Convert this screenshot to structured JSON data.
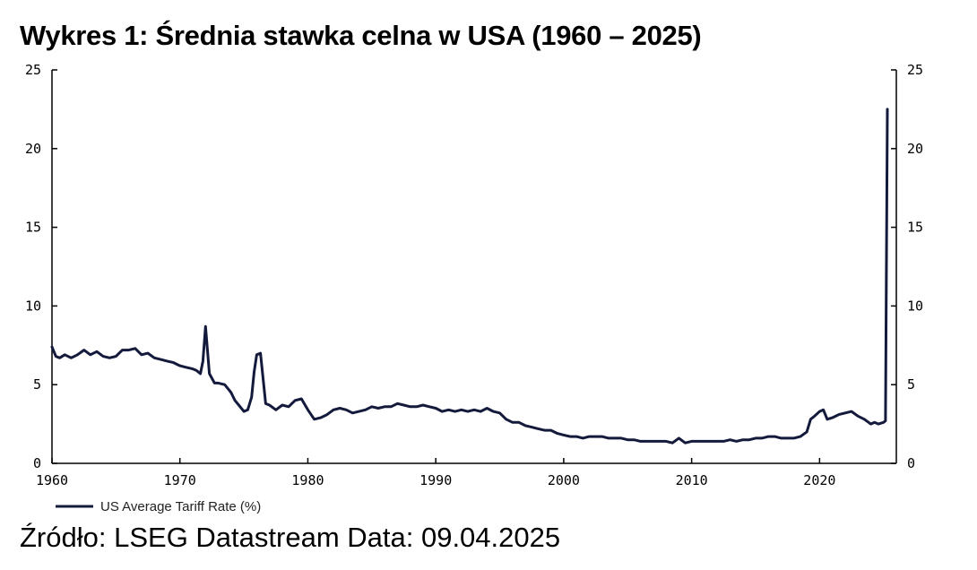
{
  "title": "Wykres 1: Średnia stawka celna w USA (1960 – 2025)",
  "source": "Źródło: LSEG Datastream Data: 09.04.2025",
  "colors": {
    "series": "#141a3c",
    "axis": "#000000"
  },
  "chart_data": {
    "type": "line",
    "title": "Wykres 1: Średnia stawka celna w USA (1960 – 2025)",
    "xlabel": "",
    "ylabel": "",
    "xlim": [
      1960,
      2026
    ],
    "ylim": [
      0,
      25
    ],
    "x_ticks": [
      1960,
      1970,
      1980,
      1990,
      2000,
      2010,
      2020
    ],
    "y_ticks": [
      0,
      5,
      10,
      15,
      20,
      25
    ],
    "y_axis_right": true,
    "grid": false,
    "legend": {
      "placement": "bottom-left"
    },
    "series": [
      {
        "name": "US Average Tariff Rate (%)",
        "color": "#141a3c",
        "x": [
          1960,
          1960.3,
          1960.6,
          1961,
          1961.5,
          1962,
          1962.5,
          1963,
          1963.5,
          1964,
          1964.5,
          1965,
          1965.5,
          1966,
          1966.5,
          1967,
          1967.5,
          1968,
          1968.5,
          1969,
          1969.5,
          1970,
          1970.5,
          1971,
          1971.3,
          1971.6,
          1971.8,
          1972,
          1972.3,
          1972.7,
          1973,
          1973.5,
          1974,
          1974.3,
          1974.6,
          1975,
          1975.3,
          1975.6,
          1975.8,
          1976,
          1976.3,
          1976.7,
          1977,
          1977.5,
          1978,
          1978.5,
          1979,
          1979.5,
          1980,
          1980.5,
          1981,
          1981.5,
          1982,
          1982.5,
          1983,
          1983.5,
          1984,
          1984.5,
          1985,
          1985.5,
          1986,
          1986.5,
          1987,
          1987.5,
          1988,
          1988.5,
          1989,
          1989.5,
          1990,
          1990.5,
          1991,
          1991.5,
          1992,
          1992.5,
          1993,
          1993.5,
          1994,
          1994.5,
          1995,
          1995.5,
          1996,
          1996.5,
          1997,
          1997.5,
          1998,
          1998.5,
          1999,
          1999.5,
          2000,
          2000.5,
          2001,
          2001.5,
          2002,
          2002.5,
          2003,
          2003.5,
          2004,
          2004.5,
          2005,
          2005.5,
          2006,
          2006.5,
          2007,
          2007.5,
          2008,
          2008.5,
          2009,
          2009.5,
          2010,
          2010.5,
          2011,
          2011.5,
          2012,
          2012.5,
          2013,
          2013.5,
          2014,
          2014.5,
          2015,
          2015.5,
          2016,
          2016.5,
          2017,
          2017.5,
          2018,
          2018.5,
          2019,
          2019.3,
          2019.6,
          2020,
          2020.3,
          2020.6,
          2021,
          2021.5,
          2022,
          2022.5,
          2023,
          2023.5,
          2024,
          2024.3,
          2024.6,
          2025,
          2025.15,
          2025.3
        ],
        "values": [
          7.4,
          6.8,
          6.7,
          6.9,
          6.7,
          6.9,
          7.2,
          6.9,
          7.1,
          6.8,
          6.7,
          6.8,
          7.2,
          7.2,
          7.3,
          6.9,
          7.0,
          6.7,
          6.6,
          6.5,
          6.4,
          6.2,
          6.1,
          6.0,
          5.9,
          5.7,
          6.5,
          8.7,
          5.7,
          5.1,
          5.1,
          5.0,
          4.5,
          4.0,
          3.7,
          3.3,
          3.4,
          4.2,
          5.8,
          6.9,
          7.0,
          3.8,
          3.7,
          3.4,
          3.7,
          3.6,
          4.0,
          4.1,
          3.4,
          2.8,
          2.9,
          3.1,
          3.4,
          3.5,
          3.4,
          3.2,
          3.3,
          3.4,
          3.6,
          3.5,
          3.6,
          3.6,
          3.8,
          3.7,
          3.6,
          3.6,
          3.7,
          3.6,
          3.5,
          3.3,
          3.4,
          3.3,
          3.4,
          3.3,
          3.4,
          3.3,
          3.5,
          3.3,
          3.2,
          2.8,
          2.6,
          2.6,
          2.4,
          2.3,
          2.2,
          2.1,
          2.1,
          1.9,
          1.8,
          1.7,
          1.7,
          1.6,
          1.7,
          1.7,
          1.7,
          1.6,
          1.6,
          1.6,
          1.5,
          1.5,
          1.4,
          1.4,
          1.4,
          1.4,
          1.4,
          1.3,
          1.6,
          1.3,
          1.4,
          1.4,
          1.4,
          1.4,
          1.4,
          1.4,
          1.5,
          1.4,
          1.5,
          1.5,
          1.6,
          1.6,
          1.7,
          1.7,
          1.6,
          1.6,
          1.6,
          1.7,
          2.0,
          2.8,
          3.0,
          3.3,
          3.4,
          2.8,
          2.9,
          3.1,
          3.2,
          3.3,
          3.0,
          2.8,
          2.5,
          2.6,
          2.5,
          2.6,
          2.7,
          22.5
        ]
      }
    ]
  }
}
